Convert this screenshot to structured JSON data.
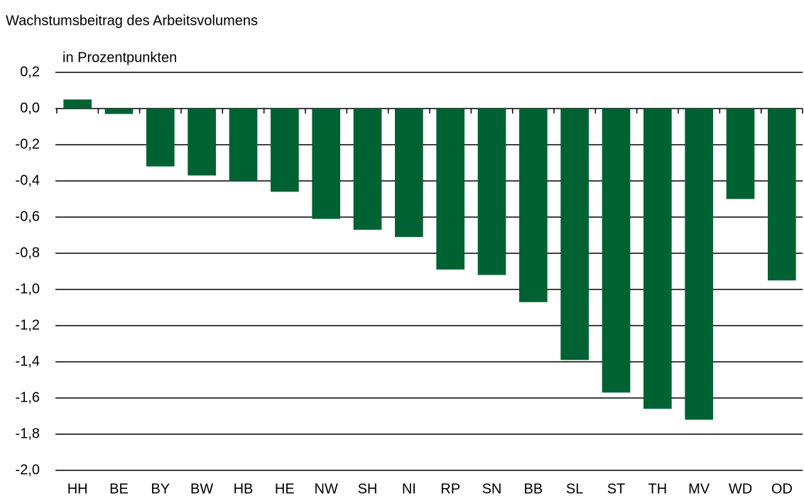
{
  "chart_data": {
    "type": "bar",
    "title": "Wachstumsbeitrag des Arbeitsvolumens",
    "y_label": "in Prozentpunkten",
    "categories": [
      "HH",
      "BE",
      "BY",
      "BW",
      "HB",
      "HE",
      "NW",
      "SH",
      "NI",
      "RP",
      "SN",
      "BB",
      "SL",
      "ST",
      "TH",
      "MV",
      "WD",
      "OD"
    ],
    "values": [
      0.05,
      -0.03,
      -0.32,
      -0.37,
      -0.4,
      -0.46,
      -0.61,
      -0.67,
      -0.71,
      -0.89,
      -0.92,
      -1.07,
      -1.39,
      -1.57,
      -1.66,
      -1.72,
      -0.5,
      -0.95
    ],
    "color": "#006233",
    "ylim": [
      -2.0,
      0.2
    ],
    "yticks": [
      {
        "value": 0.2,
        "label": "0,2"
      },
      {
        "value": 0,
        "label": "0,0"
      },
      {
        "value": -0.2,
        "label": "-0,2"
      },
      {
        "value": -0.4,
        "label": "-0,4"
      },
      {
        "value": -0.6,
        "label": "-0,6"
      },
      {
        "value": -0.8,
        "label": "-0,8"
      },
      {
        "value": -1.0,
        "label": "-1,0"
      },
      {
        "value": -1.2,
        "label": "-1,2"
      },
      {
        "value": -1.4,
        "label": "-1,4"
      },
      {
        "value": -1.6,
        "label": "-1,6"
      },
      {
        "value": -1.8,
        "label": "-1,8"
      },
      {
        "value": -2.0,
        "label": "-2,0"
      }
    ],
    "grid": true
  }
}
